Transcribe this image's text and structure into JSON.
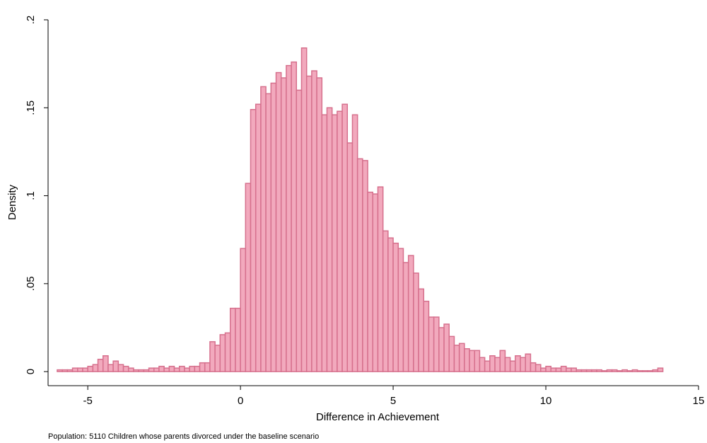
{
  "chart_data": {
    "type": "histogram",
    "xlabel": "Difference in Achievement",
    "ylabel": "Density",
    "note": "Population: 5110 Children whose parents divorced under the baseline scenario",
    "fill": "#f2a9bd",
    "edge_color": "#d6708d",
    "xlim": [
      -6.3,
      15
    ],
    "ylim": [
      -0.008,
      0.2
    ],
    "xticks": [
      -5,
      0,
      5,
      10,
      15
    ],
    "yticks": [
      0,
      {
        "value": 0.05,
        "label": ".05"
      },
      {
        "value": 0.1,
        "label": ".1"
      },
      {
        "value": 0.15,
        "label": ".15"
      },
      {
        "value": 0.2,
        "label": ".2"
      }
    ],
    "bins": [
      -6,
      -5.833,
      -5.667,
      -5.5,
      -5.333,
      -5.167,
      -5,
      -4.833,
      -4.667,
      -4.5,
      -4.333,
      -4.167,
      -4,
      -3.833,
      -3.667,
      -3.5,
      -3.333,
      -3.167,
      -3,
      -2.833,
      -2.667,
      -2.5,
      -2.333,
      -2.167,
      -2,
      -1.833,
      -1.667,
      -1.5,
      -1.333,
      -1.167,
      -1,
      -0.833,
      -0.667,
      -0.5,
      -0.333,
      -0.167,
      0,
      0.167,
      0.333,
      0.5,
      0.667,
      0.833,
      1,
      1.167,
      1.333,
      1.5,
      1.667,
      1.833,
      2,
      2.167,
      2.333,
      2.5,
      2.667,
      2.833,
      3,
      3.167,
      3.333,
      3.5,
      3.667,
      3.833,
      4,
      4.167,
      4.333,
      4.5,
      4.667,
      4.833,
      5,
      5.167,
      5.333,
      5.5,
      5.667,
      5.833,
      6,
      6.167,
      6.333,
      6.5,
      6.667,
      6.833,
      7,
      7.167,
      7.333,
      7.5,
      7.667,
      7.833,
      8,
      8.167,
      8.333,
      8.5,
      8.667,
      8.833,
      9,
      9.167,
      9.333,
      9.5,
      9.667,
      9.833,
      10,
      10.167,
      10.333,
      10.5,
      10.667,
      10.833,
      11,
      11.167,
      11.333,
      11.5,
      11.667,
      11.833,
      12,
      12.167,
      12.333,
      12.5,
      12.667,
      12.833,
      13,
      13.167,
      13.333,
      13.5,
      13.667,
      13.833
    ],
    "values": [
      0.001,
      0.001,
      0.001,
      0.002,
      0.002,
      0.002,
      0.003,
      0.004,
      0.007,
      0.009,
      0.004,
      0.006,
      0.004,
      0.003,
      0.002,
      0.001,
      0.001,
      0.001,
      0.002,
      0.002,
      0.003,
      0.002,
      0.003,
      0.002,
      0.003,
      0.002,
      0.003,
      0.003,
      0.005,
      0.005,
      0.017,
      0.015,
      0.021,
      0.022,
      0.036,
      0.036,
      0.07,
      0.107,
      0.149,
      0.152,
      0.162,
      0.158,
      0.164,
      0.17,
      0.167,
      0.174,
      0.176,
      0.16,
      0.184,
      0.168,
      0.171,
      0.167,
      0.146,
      0.15,
      0.146,
      0.148,
      0.152,
      0.13,
      0.146,
      0.121,
      0.12,
      0.102,
      0.101,
      0.105,
      0.08,
      0.076,
      0.073,
      0.07,
      0.062,
      0.066,
      0.056,
      0.047,
      0.04,
      0.031,
      0.031,
      0.025,
      0.027,
      0.02,
      0.015,
      0.016,
      0.013,
      0.012,
      0.012,
      0.008,
      0.006,
      0.009,
      0.008,
      0.012,
      0.008,
      0.006,
      0.009,
      0.008,
      0.01,
      0.005,
      0.004,
      0.002,
      0.003,
      0.002,
      0.002,
      0.003,
      0.002,
      0.002,
      0.001,
      0.001,
      0.001,
      0.001,
      0.001,
      0.0005,
      0.001,
      0.001,
      0.0005,
      0.001,
      0.0005,
      0.001,
      0.0005,
      0.0005,
      0.0005,
      0.001,
      0.002
    ]
  }
}
